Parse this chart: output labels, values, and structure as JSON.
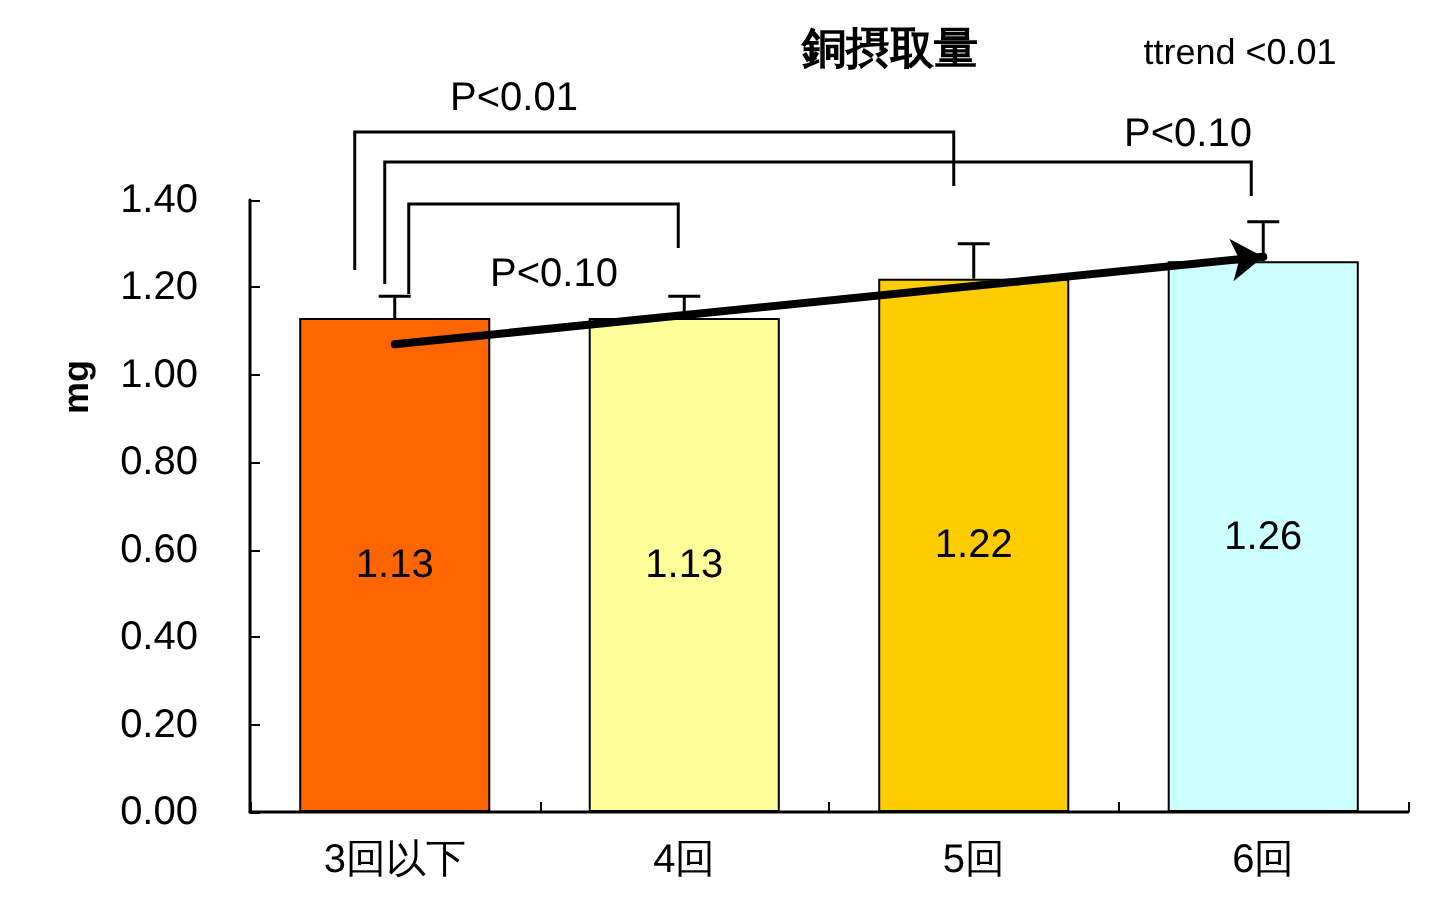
{
  "chart_data": {
    "type": "bar",
    "title": "銅摂取量",
    "ylabel": "mg",
    "categories": [
      "3回以下",
      "4回",
      "5回",
      "6回"
    ],
    "series": [
      {
        "colors": [
          "#ff6600",
          "#ffff99",
          "#ffcc00",
          "#ccffff"
        ],
        "values": [
          1.13,
          1.13,
          1.22,
          1.26
        ],
        "value_labels": [
          "1.13",
          "1.13",
          "1.22",
          "1.26"
        ],
        "errors": [
          [
            1.13,
            1.18
          ],
          [
            1.13,
            1.18
          ],
          [
            1.22,
            1.3
          ],
          [
            1.26,
            1.35
          ]
        ]
      },
      {
        "type": "line",
        "color": "#000000",
        "x": [
          "3回以下",
          "6回"
        ],
        "values": [
          1.07,
          1.27
        ]
      }
    ],
    "ylim": [
      0,
      1.4
    ],
    "yticks": [
      {
        "value": 0,
        "label": "0.00"
      },
      {
        "value": 0.2,
        "label": "0.20"
      },
      {
        "value": 0.4,
        "label": "0.40"
      },
      {
        "value": 0.6,
        "label": "0.60"
      },
      {
        "value": 0.8,
        "label": "0.80"
      },
      {
        "value": 1,
        "label": "1.00"
      },
      {
        "value": 1.2,
        "label": "1.20"
      },
      {
        "value": 1.4,
        "label": "1.40"
      }
    ],
    "annotations": [
      "P<0.01",
      "P<0.10",
      "P<0.10",
      "ttrend <0.01"
    ]
  }
}
